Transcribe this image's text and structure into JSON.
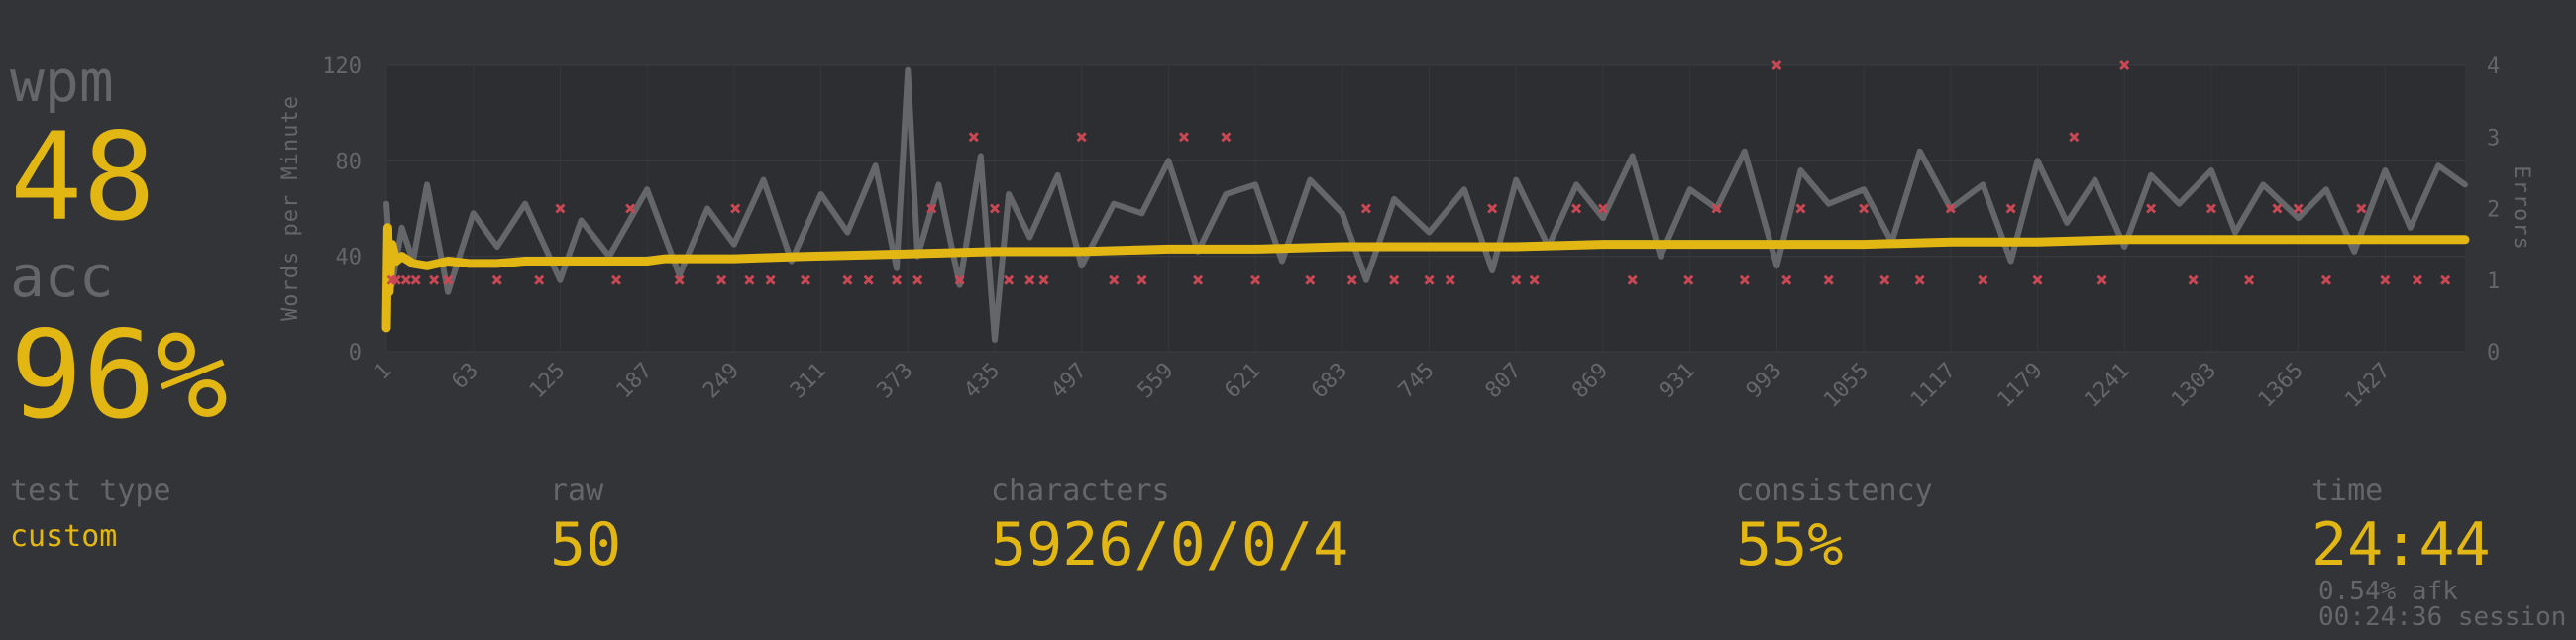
{
  "stats": {
    "wpm_label": "wpm",
    "wpm_value": "48",
    "acc_label": "acc",
    "acc_value": "96%"
  },
  "bottom": {
    "test_type_label": "test type",
    "test_type_value": "custom",
    "raw_label": "raw",
    "raw_value": "50",
    "characters_label": "characters",
    "characters_value": "5926/0/0/4",
    "consistency_label": "consistency",
    "consistency_value": "55%",
    "time_label": "time",
    "time_value": "24:44",
    "afk": "0.54% afk",
    "session": "00:24:36 session"
  },
  "colors": {
    "background": "#323437",
    "accent": "#e2b714",
    "sub": "#646669",
    "raw_line": "#646669",
    "error": "#ca4754"
  },
  "chart_data": {
    "type": "line",
    "ylabel": "Words per Minute",
    "y2label": "Errors",
    "ylim": [
      0,
      120
    ],
    "y2lim": [
      0,
      4
    ],
    "yticks": [
      "0",
      "40",
      "80",
      "120"
    ],
    "y2ticks": [
      "0",
      "1",
      "2",
      "3",
      "4"
    ],
    "xlim": [
      1,
      1484
    ],
    "xticks": [
      "1",
      "63",
      "125",
      "187",
      "249",
      "311",
      "373",
      "435",
      "497",
      "559",
      "621",
      "683",
      "745",
      "807",
      "869",
      "931",
      "993",
      "1055",
      "1117",
      "1179",
      "1241",
      "1303",
      "1365",
      "1427"
    ],
    "series": [
      {
        "kind": "wpm",
        "color": "#e2b714",
        "x": [
          1,
          2,
          3,
          5,
          8,
          12,
          20,
          30,
          45,
          60,
          80,
          100,
          125,
          150,
          187,
          200,
          249,
          300,
          373,
          435,
          497,
          559,
          621,
          683,
          745,
          807,
          869,
          931,
          993,
          1055,
          1117,
          1179,
          1241,
          1303,
          1365,
          1427,
          1484
        ],
        "y": [
          10,
          52,
          25,
          45,
          38,
          40,
          37,
          36,
          38,
          37,
          37,
          38,
          38,
          38,
          38,
          39,
          39,
          40,
          41,
          42,
          42,
          43,
          43,
          44,
          44,
          44,
          45,
          45,
          45,
          45,
          46,
          46,
          47,
          47,
          47,
          47,
          47
        ]
      },
      {
        "kind": "raw",
        "color": "#646669",
        "x": [
          1,
          5,
          12,
          20,
          30,
          45,
          63,
          80,
          100,
          125,
          140,
          160,
          187,
          210,
          230,
          249,
          270,
          290,
          311,
          330,
          350,
          365,
          373,
          380,
          395,
          410,
          425,
          435,
          445,
          460,
          480,
          497,
          520,
          540,
          559,
          580,
          600,
          621,
          640,
          660,
          683,
          700,
          720,
          745,
          770,
          790,
          807,
          830,
          850,
          869,
          890,
          910,
          931,
          950,
          970,
          993,
          1010,
          1030,
          1055,
          1075,
          1095,
          1117,
          1140,
          1160,
          1179,
          1200,
          1220,
          1241,
          1260,
          1280,
          1303,
          1320,
          1340,
          1365,
          1385,
          1405,
          1427,
          1445,
          1465,
          1484
        ],
        "y": [
          62,
          28,
          52,
          38,
          70,
          25,
          58,
          44,
          62,
          30,
          55,
          40,
          68,
          32,
          60,
          45,
          72,
          38,
          66,
          50,
          78,
          35,
          118,
          40,
          70,
          28,
          82,
          5,
          66,
          48,
          74,
          36,
          62,
          58,
          80,
          42,
          66,
          70,
          38,
          72,
          58,
          30,
          64,
          50,
          68,
          34,
          72,
          44,
          70,
          56,
          82,
          40,
          68,
          60,
          84,
          36,
          76,
          62,
          68,
          46,
          84,
          60,
          70,
          38,
          80,
          54,
          72,
          44,
          74,
          62,
          76,
          50,
          70,
          56,
          68,
          42,
          76,
          52,
          78,
          70
        ]
      }
    ],
    "errors": {
      "color": "#ca4754",
      "x": [
        5,
        8,
        15,
        22,
        35,
        45,
        80,
        110,
        125,
        165,
        175,
        210,
        240,
        250,
        260,
        275,
        300,
        330,
        345,
        365,
        380,
        390,
        410,
        420,
        435,
        445,
        460,
        470,
        497,
        520,
        540,
        570,
        580,
        600,
        621,
        660,
        690,
        700,
        720,
        745,
        760,
        790,
        807,
        820,
        850,
        869,
        890,
        930,
        950,
        970,
        993,
        1000,
        1010,
        1030,
        1055,
        1070,
        1095,
        1117,
        1140,
        1160,
        1179,
        1205,
        1225,
        1241,
        1260,
        1290,
        1303,
        1330,
        1350,
        1365,
        1385,
        1410,
        1427,
        1450,
        1470
      ],
      "y": [
        1,
        1,
        1,
        1,
        1,
        1,
        1,
        1,
        2,
        1,
        2,
        1,
        1,
        2,
        1,
        1,
        1,
        1,
        1,
        1,
        1,
        2,
        1,
        3,
        2,
        1,
        1,
        1,
        3,
        1,
        1,
        3,
        1,
        3,
        1,
        1,
        1,
        2,
        1,
        1,
        1,
        2,
        1,
        1,
        2,
        2,
        1,
        1,
        2,
        1,
        4,
        1,
        2,
        1,
        2,
        1,
        1,
        2,
        1,
        2,
        1,
        3,
        1,
        4,
        2,
        1,
        2,
        1,
        2,
        2,
        1,
        2,
        1,
        1,
        1
      ]
    }
  }
}
